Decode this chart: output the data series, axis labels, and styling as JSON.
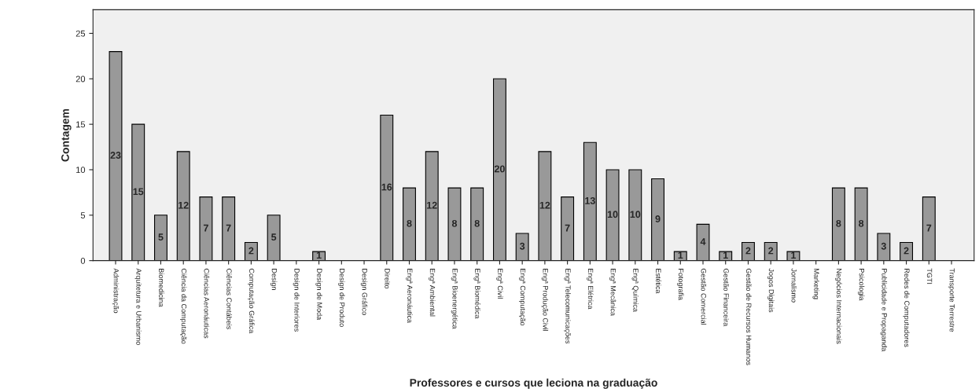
{
  "chart_data": {
    "type": "bar",
    "ylabel": "Contagem",
    "xlabel": "Professores e cursos que leciona na graduação",
    "categories": [
      "Administração",
      "Arquitetura e Urbanismo",
      "Biomedicina",
      "Ciência da Computação",
      "Ciências Aeronáuticas",
      "Ciências Contábeis",
      "Computação Gráfica",
      "Design",
      "Design de Interiores",
      "Design de Moda",
      "Design de Produto",
      "Design Gráfico",
      "Direito",
      "Engª Aeronáutica",
      "Engª Ambiental",
      "Engª Bioenergética",
      "Engª Biomédica",
      "Engª Civil",
      "Engª Computação",
      "Engª Produção Civil",
      "Engª Telecomunicações",
      "Engª Elétrica",
      "Engª Mecânica",
      "Engª Química",
      "Estética",
      "Fotografia",
      "Gestão Comercial",
      "Gestão Financeira",
      "Gestão de Recursos Humanos",
      "Jogos Digitais",
      "Jornalismo",
      "Marketing",
      "Negócios Internacionais",
      "Psicologia",
      "Publicidade e Propaganda",
      "Redes de Computadores",
      "TGTI",
      "Transporte Terrestre"
    ],
    "values": [
      23,
      15,
      5,
      12,
      7,
      7,
      2,
      5,
      0,
      1,
      0,
      0,
      16,
      8,
      12,
      8,
      8,
      20,
      3,
      12,
      7,
      13,
      10,
      10,
      9,
      1,
      4,
      1,
      2,
      2,
      1,
      0,
      8,
      8,
      3,
      2,
      7,
      0
    ],
    "value_labels": [
      "23",
      "15",
      "5",
      "12",
      "7",
      "7",
      "2",
      "5",
      null,
      "1",
      null,
      null,
      "16",
      "8",
      "12",
      "8",
      "8",
      "20",
      "3",
      "12",
      "7",
      "13",
      "10",
      "10",
      "9",
      "1",
      "4",
      "1",
      "2",
      "2",
      "1",
      null,
      "8",
      "8",
      "3",
      "2",
      "7",
      null
    ],
    "color": "#999999",
    "ylim": [
      0,
      27.6
    ],
    "yticks": [
      0,
      5,
      10,
      15,
      20,
      25
    ],
    "grid": false
  }
}
